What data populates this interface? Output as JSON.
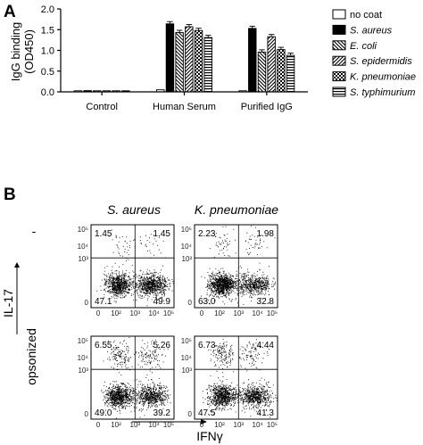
{
  "panel_a": {
    "letter": "A",
    "chart_data": {
      "type": "bar",
      "ylabel_line1": "IgG binding",
      "ylabel_line2": "(OD450)",
      "ylim": [
        0,
        2.0
      ],
      "yticks": [
        "0.0",
        "0.5",
        "1.0",
        "1.5",
        "2.0"
      ],
      "categories": [
        "Control",
        "Human Serum",
        "Purified IgG"
      ],
      "series": [
        {
          "name": "no coat",
          "pattern": "white",
          "values": [
            0.02,
            0.05,
            0.02
          ]
        },
        {
          "name": "S. aureus",
          "pattern": "black",
          "values": [
            0.03,
            1.64,
            1.53
          ]
        },
        {
          "name": "E. coli",
          "pattern": "hatch-back",
          "values": [
            0.02,
            1.43,
            0.96
          ]
        },
        {
          "name": "S. epidermidis",
          "pattern": "hatch-fwd",
          "values": [
            0.02,
            1.57,
            1.33
          ]
        },
        {
          "name": "K. pneumoniae",
          "pattern": "checker",
          "values": [
            0.02,
            1.48,
            1.02
          ]
        },
        {
          "name": "S. typhimurium",
          "pattern": "hlines",
          "values": [
            0.02,
            1.31,
            0.88
          ]
        }
      ],
      "grid": false,
      "legend_position": "right"
    }
  },
  "panel_b": {
    "letter": "B",
    "col_titles": [
      "S. aureus",
      "K. pneumoniae"
    ],
    "row_labels": [
      "-",
      "opsonized"
    ],
    "y_axis_label": "IL-17",
    "x_axis_label": "IFNγ",
    "density_axis": {
      "y_labels": [
        "10⁵",
        "10⁴",
        "10³",
        "0"
      ],
      "x_labels": [
        "0",
        "10²",
        "10³",
        "10⁴",
        "10⁵"
      ]
    },
    "plots": [
      {
        "row": 0,
        "col": 0,
        "ul": "1.45",
        "ur": "1.45",
        "ll": "47.1",
        "lr": "49.9"
      },
      {
        "row": 0,
        "col": 1,
        "ul": "2.23",
        "ur": "1.98",
        "ll": "63.0",
        "lr": "32.8"
      },
      {
        "row": 1,
        "col": 0,
        "ul": "6.55",
        "ur": "5.26",
        "ll": "49.0",
        "lr": "39.2"
      },
      {
        "row": 1,
        "col": 1,
        "ul": "6.73",
        "ur": "4.44",
        "ll": "47.5",
        "lr": "41.3"
      }
    ]
  }
}
